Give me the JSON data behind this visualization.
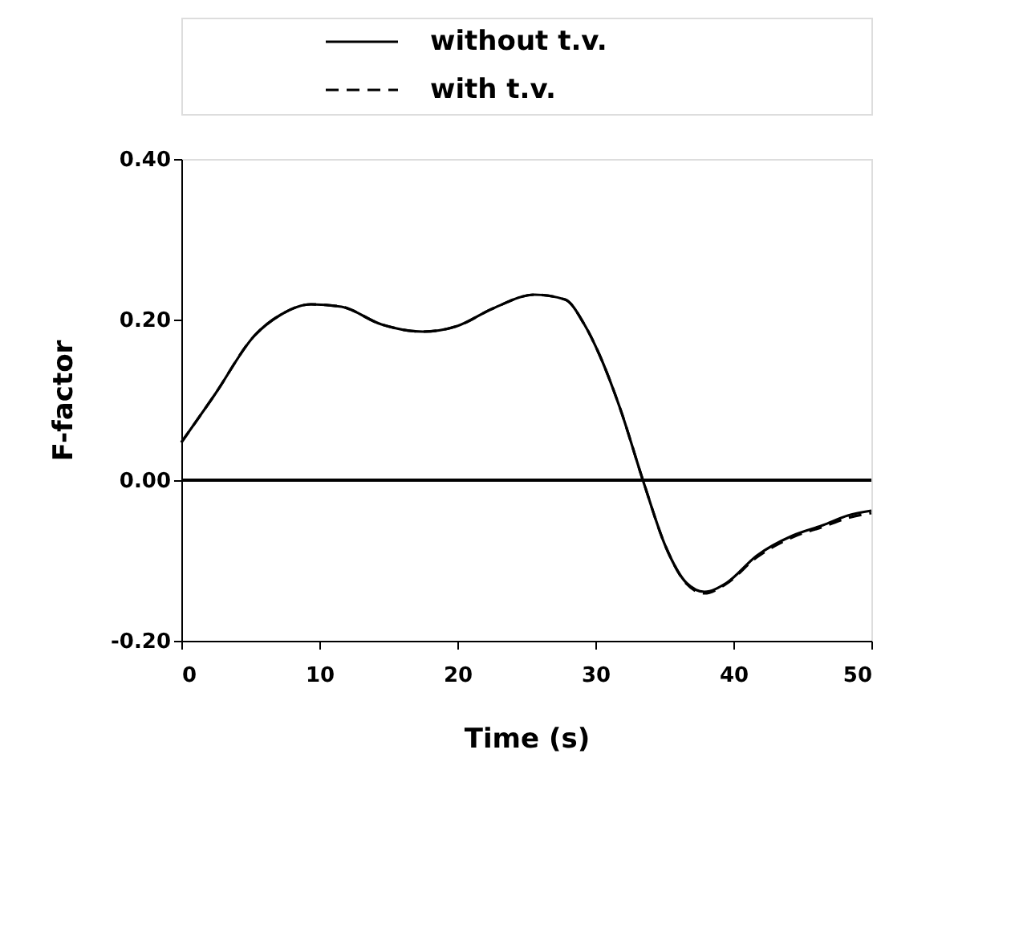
{
  "chart_data": {
    "type": "line",
    "xlabel": "Time  (s)",
    "ylabel": "F-factor",
    "x": [
      0,
      2.4,
      5.3,
      7.2,
      9.4,
      11.6,
      14.5,
      17.5,
      20,
      22.6,
      25.6,
      27.8,
      29.2,
      30.3,
      31.8,
      33.5,
      35.1,
      36.6,
      37.9,
      39.5,
      41.7,
      44.3,
      46.5,
      48.3,
      50
    ],
    "series": [
      {
        "name": "without  t.v.",
        "color": "#000000",
        "line_style": "solid",
        "values": [
          0.047,
          0.106,
          0.18,
          0.206,
          0.219,
          0.216,
          0.194,
          0.185,
          0.192,
          0.214,
          0.231,
          0.225,
          0.194,
          0.156,
          0.089,
          -0.003,
          -0.083,
          -0.128,
          -0.139,
          -0.128,
          -0.094,
          -0.069,
          -0.056,
          -0.044,
          -0.038
        ]
      },
      {
        "name": "with  t.v.",
        "color": "#000000",
        "line_style": "dashed",
        "values": [
          0.047,
          0.106,
          0.18,
          0.206,
          0.219,
          0.216,
          0.194,
          0.185,
          0.192,
          0.214,
          0.231,
          0.225,
          0.194,
          0.156,
          0.089,
          -0.003,
          -0.083,
          -0.129,
          -0.141,
          -0.129,
          -0.096,
          -0.071,
          -0.058,
          -0.047,
          -0.041
        ]
      }
    ],
    "xlim": [
      0,
      50
    ],
    "xticks": [
      0,
      10,
      20,
      30,
      40,
      50
    ],
    "ylim": [
      -0.2,
      0.4
    ],
    "yticks": [
      {
        "value": -0.2,
        "label": "-0.20"
      },
      {
        "value": 0,
        "label": "0.00"
      },
      {
        "value": 0.2,
        "label": "0.20"
      },
      {
        "value": 0.4,
        "label": "0.40"
      }
    ],
    "ref_lines": [
      {
        "axis": "y",
        "value": 0,
        "color": "#000000"
      }
    ],
    "grid": false,
    "legend": "top",
    "marker": "none"
  }
}
